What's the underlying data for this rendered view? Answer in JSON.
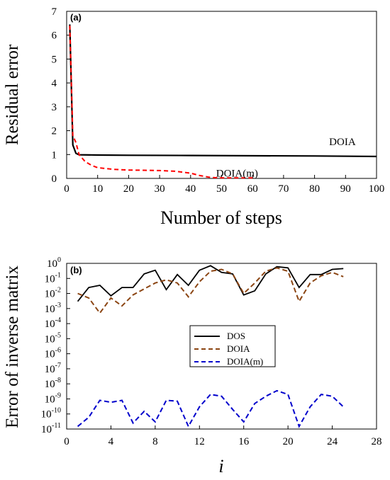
{
  "chart_data": [
    {
      "type": "line",
      "panel_label": "(a)",
      "xlabel": "Number of steps",
      "ylabel": "Residual error",
      "xlim": [
        0,
        100
      ],
      "ylim": [
        0,
        7
      ],
      "xticks": [
        0,
        10,
        20,
        30,
        40,
        50,
        60,
        70,
        80,
        90,
        100
      ],
      "yticks": [
        0,
        1,
        2,
        3,
        4,
        5,
        6,
        7
      ],
      "grid": false,
      "series": [
        {
          "name": "DOIA",
          "color": "#000000",
          "style": "solid",
          "x": [
            1,
            2,
            3,
            4,
            10,
            20,
            40,
            60,
            80,
            100
          ],
          "y": [
            6.45,
            1.4,
            1.05,
            0.99,
            0.98,
            0.97,
            0.96,
            0.95,
            0.94,
            0.92
          ]
        },
        {
          "name": "DOIA(m)",
          "color": "#ff0000",
          "style": "dashed",
          "x": [
            1,
            2,
            3,
            4,
            6,
            8,
            10,
            15,
            20,
            25,
            30,
            35,
            40,
            43,
            46,
            48,
            52,
            56,
            60
          ],
          "y": [
            6.4,
            1.8,
            1.5,
            1.0,
            0.7,
            0.55,
            0.45,
            0.38,
            0.35,
            0.34,
            0.33,
            0.3,
            0.22,
            0.12,
            0.05,
            0.03,
            0.02,
            0.02,
            0.02
          ]
        }
      ],
      "annotations": [
        {
          "text": "DOIA",
          "x": 89,
          "y": 1.4
        },
        {
          "text": "DOIA(m)",
          "x": 55,
          "y": 0.08
        }
      ]
    },
    {
      "type": "line",
      "panel_label": "(b)",
      "xlabel": "i",
      "ylabel": "Error of inverse matrix",
      "xlim": [
        0,
        28
      ],
      "ylim_log10": [
        -11,
        0
      ],
      "y_scale": "log",
      "xticks": [
        0,
        4,
        8,
        12,
        16,
        20,
        24,
        28
      ],
      "ytick_exponents": [
        0,
        -1,
        -2,
        -3,
        -4,
        -5,
        -6,
        -7,
        -8,
        -9,
        -10,
        -11
      ],
      "ytick_base": "10",
      "grid": false,
      "legend_position": "center",
      "series": [
        {
          "name": "DOS",
          "color": "#000000",
          "style": "solid",
          "x": [
            1,
            2,
            3,
            4,
            5,
            6,
            7,
            8,
            9,
            10,
            11,
            12,
            13,
            14,
            15,
            16,
            17,
            18,
            19,
            20,
            21,
            22,
            23,
            24,
            25
          ],
          "y": [
            0.003,
            0.025,
            0.035,
            0.007,
            0.025,
            0.025,
            0.2,
            0.35,
            0.018,
            0.18,
            0.035,
            0.35,
            0.7,
            0.25,
            0.2,
            0.008,
            0.015,
            0.2,
            0.6,
            0.5,
            0.025,
            0.18,
            0.18,
            0.4,
            0.45
          ]
        },
        {
          "name": "DOIA",
          "color": "#8b4513",
          "style": "dashed",
          "x": [
            1,
            2,
            3,
            4,
            5,
            6,
            7,
            8,
            9,
            10,
            11,
            12,
            13,
            14,
            15,
            16,
            17,
            18,
            19,
            20,
            21,
            22,
            23,
            24,
            25
          ],
          "y": [
            0.01,
            0.005,
            0.0005,
            0.005,
            0.0015,
            0.008,
            0.02,
            0.05,
            0.08,
            0.05,
            0.006,
            0.06,
            0.3,
            0.4,
            0.2,
            0.01,
            0.05,
            0.3,
            0.5,
            0.3,
            0.003,
            0.05,
            0.15,
            0.25,
            0.13
          ]
        },
        {
          "name": "DOIA(m)",
          "color": "#0000cc",
          "style": "dashed",
          "x": [
            1,
            2,
            3,
            4,
            5,
            6,
            7,
            8,
            9,
            10,
            11,
            12,
            13,
            14,
            15,
            16,
            17,
            18,
            19,
            20,
            21,
            22,
            23,
            24,
            25
          ],
          "y": [
            1.5e-11,
            6e-11,
            8e-10,
            6e-10,
            8e-10,
            2.5e-11,
            1.5e-10,
            3e-11,
            8e-10,
            7e-10,
            1.5e-11,
            3e-10,
            2e-09,
            1.5e-09,
            2e-10,
            3e-11,
            5e-10,
            1.5e-09,
            3.5e-09,
            2e-09,
            1.5e-11,
            3e-10,
            2e-09,
            1.5e-09,
            3e-10
          ]
        }
      ]
    }
  ]
}
